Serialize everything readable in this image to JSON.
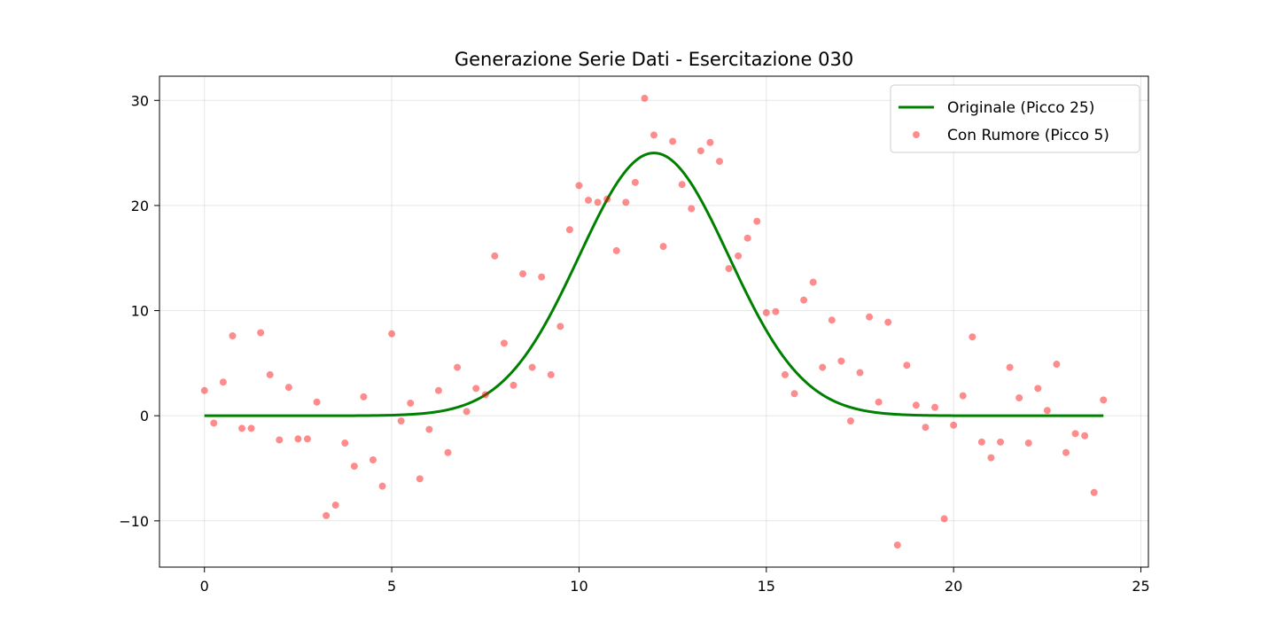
{
  "chart_data": {
    "type": "scatter",
    "title": "Generazione Serie Dati - Esercitazione 030",
    "xlabel": "",
    "ylabel": "",
    "xlim": [
      -1.2,
      25.2
    ],
    "ylim": [
      -14.4,
      32.3
    ],
    "xticks": [
      0,
      5,
      10,
      15,
      20,
      25
    ],
    "yticks": [
      -10,
      0,
      10,
      20,
      30
    ],
    "xtick_labels": [
      "0",
      "5",
      "10",
      "15",
      "20",
      "25"
    ],
    "ytick_labels": [
      "−10",
      "0",
      "10",
      "20",
      "30"
    ],
    "grid": true,
    "legend_position": "top-right",
    "series": [
      {
        "name": "Originale (Picco 25)",
        "kind": "line",
        "color": "#008000",
        "x_range": [
          0,
          24
        ],
        "peak_height": 25,
        "peak_x": 12,
        "sigma": 2.0
      },
      {
        "name": "Con Rumore (Picco 5)",
        "kind": "scatter",
        "color": "#ff0000",
        "opacity": 0.45,
        "x": [
          0,
          0.25,
          0.5,
          0.75,
          1,
          1.25,
          1.5,
          1.75,
          2,
          2.25,
          2.5,
          2.75,
          3,
          3.25,
          3.5,
          3.75,
          4,
          4.25,
          4.5,
          4.75,
          5,
          5.25,
          5.5,
          5.75,
          6,
          6.25,
          6.5,
          6.75,
          7,
          7.25,
          7.5,
          7.75,
          8,
          8.25,
          8.5,
          8.75,
          9,
          9.25,
          9.5,
          9.75,
          10,
          10.25,
          10.5,
          10.75,
          11,
          11.25,
          11.5,
          11.75,
          12,
          12.25,
          12.5,
          12.75,
          13,
          13.25,
          13.5,
          13.75,
          14,
          14.25,
          14.5,
          14.75,
          15,
          15.25,
          15.5,
          15.75,
          16,
          16.25,
          16.5,
          16.75,
          17,
          17.25,
          17.5,
          17.75,
          18,
          18.25,
          18.5,
          18.75,
          19,
          19.25,
          19.5,
          19.75,
          20,
          20.25,
          20.5,
          20.75,
          21,
          21.25,
          21.5,
          21.75,
          22,
          22.25,
          22.5,
          22.75,
          23,
          23.25,
          23.5,
          23.75,
          24
        ],
        "y": [
          2.4,
          -0.7,
          3.2,
          7.6,
          -1.2,
          -1.2,
          7.9,
          3.9,
          -2.3,
          2.7,
          -2.2,
          -2.2,
          1.3,
          -9.5,
          -8.5,
          -2.6,
          -4.8,
          1.8,
          -4.2,
          -6.7,
          7.8,
          -0.5,
          1.2,
          -6.0,
          -1.3,
          2.4,
          -3.5,
          4.6,
          0.4,
          2.6,
          2.0,
          15.2,
          6.9,
          2.9,
          13.5,
          4.6,
          13.2,
          3.9,
          8.5,
          17.7,
          21.9,
          20.5,
          20.3,
          20.6,
          15.7,
          20.3,
          22.2,
          30.2,
          26.7,
          16.1,
          26.1,
          22.0,
          19.7,
          25.2,
          26.0,
          24.2,
          14.0,
          15.2,
          16.9,
          18.5,
          9.8,
          9.9,
          3.9,
          2.1,
          11.0,
          12.7,
          4.6,
          9.1,
          5.2,
          -0.5,
          4.1,
          9.4,
          1.3,
          8.9,
          -12.3,
          4.8,
          1.0,
          -1.1,
          0.8,
          -9.8,
          -0.9,
          1.9,
          7.5,
          -2.5,
          -4.0,
          -2.5,
          4.6,
          1.7,
          -2.6,
          2.6,
          0.5,
          4.9,
          -3.5,
          -1.7,
          -1.9,
          -7.3,
          1.5
        ]
      }
    ]
  }
}
